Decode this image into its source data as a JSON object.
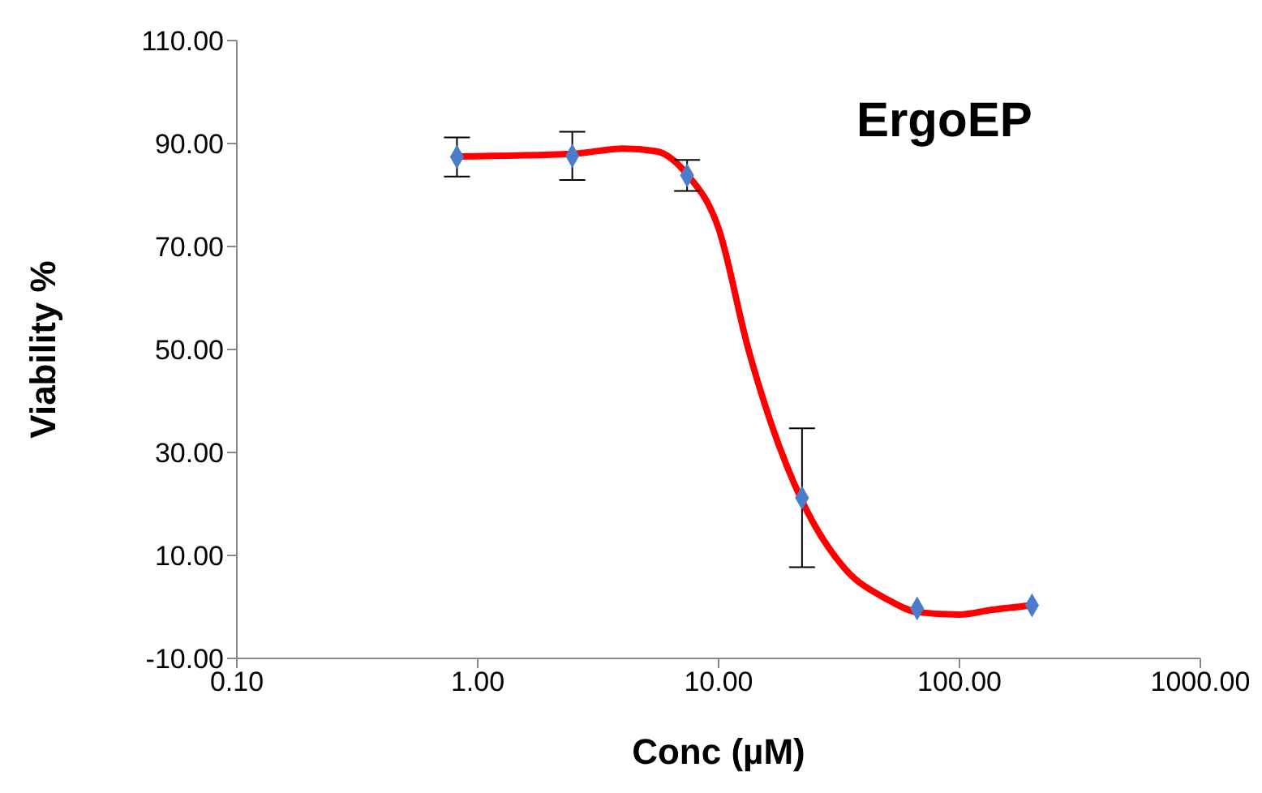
{
  "chart_data": {
    "type": "scatter",
    "title": "ErgoEP",
    "xlabel": "Conc (µM)",
    "ylabel": "Viability %",
    "log": "x",
    "xlim": [
      0.1,
      1000
    ],
    "xticks": [
      {
        "value": 0.1,
        "label": "0.10"
      },
      {
        "value": 1,
        "label": "1.00"
      },
      {
        "value": 10,
        "label": "10.00"
      },
      {
        "value": 100,
        "label": "100.00"
      },
      {
        "value": 1000,
        "label": "1000.00"
      }
    ],
    "ylim": [
      -10,
      110
    ],
    "yticks": [
      {
        "value": -10,
        "label": "-10.00"
      },
      {
        "value": 10,
        "label": "10.00"
      },
      {
        "value": 30,
        "label": "30.00"
      },
      {
        "value": 50,
        "label": "50.00"
      },
      {
        "value": 70,
        "label": "70.00"
      },
      {
        "value": 90,
        "label": "90.00"
      },
      {
        "value": 110,
        "label": "110.00"
      }
    ],
    "grid": false,
    "series": [
      {
        "type": "line",
        "color": "#ff0000",
        "marker": "none",
        "line_style": "solid",
        "x": [
          0.82,
          2.47,
          4,
          5.5,
          7.4,
          10,
          13.3,
          16.7,
          22.2,
          33.5,
          50,
          66.7,
          100,
          135,
          200
        ],
        "values": [
          87.5,
          88,
          89,
          88.5,
          84,
          73.5,
          50,
          35,
          20.6,
          7.4,
          1.5,
          -1,
          -1.5,
          -0.6,
          0.3
        ]
      },
      {
        "color": "#4a7cc9",
        "marker": "diamond",
        "x": [
          0.82,
          2.47,
          7.4,
          22.2,
          66.7,
          200
        ],
        "values": [
          87.4,
          87.6,
          83.8,
          21.2,
          -0.3,
          0.3
        ],
        "errors": [
          3.8,
          4.7,
          3,
          13.5,
          null,
          null
        ]
      }
    ]
  }
}
